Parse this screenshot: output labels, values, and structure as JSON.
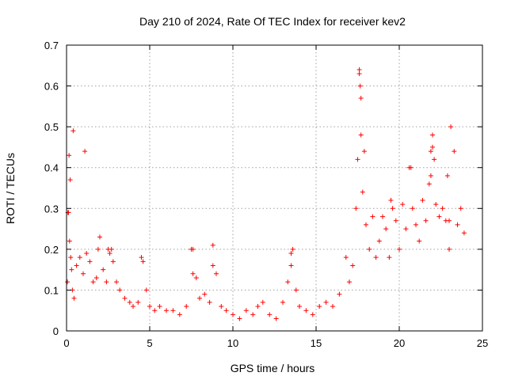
{
  "chart_data": {
    "type": "scatter",
    "title": "Day 210 of 2024, Rate Of TEC Index for receiver kev2",
    "xlabel": "GPS time / hours",
    "ylabel": "ROTI / TECUs",
    "xlim": [
      0,
      25
    ],
    "ylim": [
      0,
      0.7
    ],
    "xticks": [
      "0",
      "5",
      "10",
      "15",
      "20",
      "25"
    ],
    "yticks": [
      "0",
      "0.1",
      "0.2",
      "0.3",
      "0.4",
      "0.5",
      "0.6",
      "0.7"
    ],
    "grid": true,
    "marker": "+",
    "color": "#ff0000",
    "series": [
      {
        "name": "",
        "x": [
          0.05,
          0.12,
          0.18,
          0.25,
          0.3,
          0.35,
          0.45,
          0.6,
          0.8,
          1.0,
          1.2,
          1.4,
          1.6,
          1.8,
          2.0,
          2.2,
          2.4,
          2.6,
          2.7,
          2.8,
          3.0,
          3.2,
          3.5,
          3.8,
          4.0,
          4.3,
          4.6,
          4.8,
          5.0,
          5.3,
          5.6,
          6.0,
          6.4,
          6.8,
          7.2,
          7.5,
          7.6,
          7.8,
          8.0,
          8.3,
          8.6,
          8.8,
          9.0,
          9.3,
          9.6,
          10.0,
          10.4,
          10.8,
          11.2,
          11.5,
          11.8,
          12.2,
          12.6,
          13.0,
          13.3,
          13.5,
          13.6,
          13.8,
          14.0,
          14.4,
          14.8,
          15.2,
          15.6,
          16.0,
          16.4,
          16.8,
          17.0,
          17.2,
          17.4,
          17.5,
          17.6,
          17.7,
          17.8,
          17.9,
          18.0,
          18.2,
          18.4,
          18.6,
          18.8,
          19.0,
          19.2,
          19.4,
          19.6,
          19.8,
          20.0,
          20.2,
          20.4,
          20.6,
          20.8,
          21.0,
          21.2,
          21.4,
          21.6,
          21.8,
          21.9,
          22.0,
          22.1,
          22.2,
          22.4,
          22.6,
          22.8,
          23.0,
          23.1,
          23.3,
          23.5,
          23.7,
          23.9,
          0.08,
          0.15,
          0.22,
          0.4,
          1.1,
          1.9,
          2.5,
          4.5,
          7.6,
          8.8,
          13.5,
          17.6,
          17.65,
          17.7,
          19.5,
          20.7,
          21.9,
          22.0,
          22.9,
          23.0
        ],
        "y": [
          0.12,
          0.29,
          0.22,
          0.18,
          0.15,
          0.1,
          0.08,
          0.16,
          0.18,
          0.14,
          0.19,
          0.17,
          0.12,
          0.13,
          0.23,
          0.15,
          0.12,
          0.19,
          0.2,
          0.17,
          0.12,
          0.1,
          0.08,
          0.07,
          0.06,
          0.07,
          0.17,
          0.1,
          0.06,
          0.05,
          0.06,
          0.05,
          0.05,
          0.04,
          0.06,
          0.2,
          0.14,
          0.13,
          0.08,
          0.09,
          0.07,
          0.16,
          0.14,
          0.06,
          0.05,
          0.04,
          0.03,
          0.05,
          0.04,
          0.06,
          0.07,
          0.04,
          0.03,
          0.07,
          0.12,
          0.19,
          0.2,
          0.1,
          0.06,
          0.05,
          0.04,
          0.06,
          0.07,
          0.06,
          0.09,
          0.18,
          0.12,
          0.16,
          0.3,
          0.42,
          0.63,
          0.48,
          0.34,
          0.44,
          0.26,
          0.2,
          0.28,
          0.18,
          0.22,
          0.28,
          0.25,
          0.18,
          0.3,
          0.27,
          0.2,
          0.31,
          0.25,
          0.4,
          0.3,
          0.26,
          0.22,
          0.32,
          0.27,
          0.36,
          0.44,
          0.48,
          0.42,
          0.31,
          0.28,
          0.3,
          0.27,
          0.2,
          0.5,
          0.44,
          0.26,
          0.3,
          0.24,
          0.29,
          0.43,
          0.37,
          0.49,
          0.44,
          0.2,
          0.2,
          0.18,
          0.2,
          0.21,
          0.16,
          0.64,
          0.6,
          0.57,
          0.32,
          0.4,
          0.38,
          0.45,
          0.38,
          0.27
        ]
      }
    ]
  }
}
